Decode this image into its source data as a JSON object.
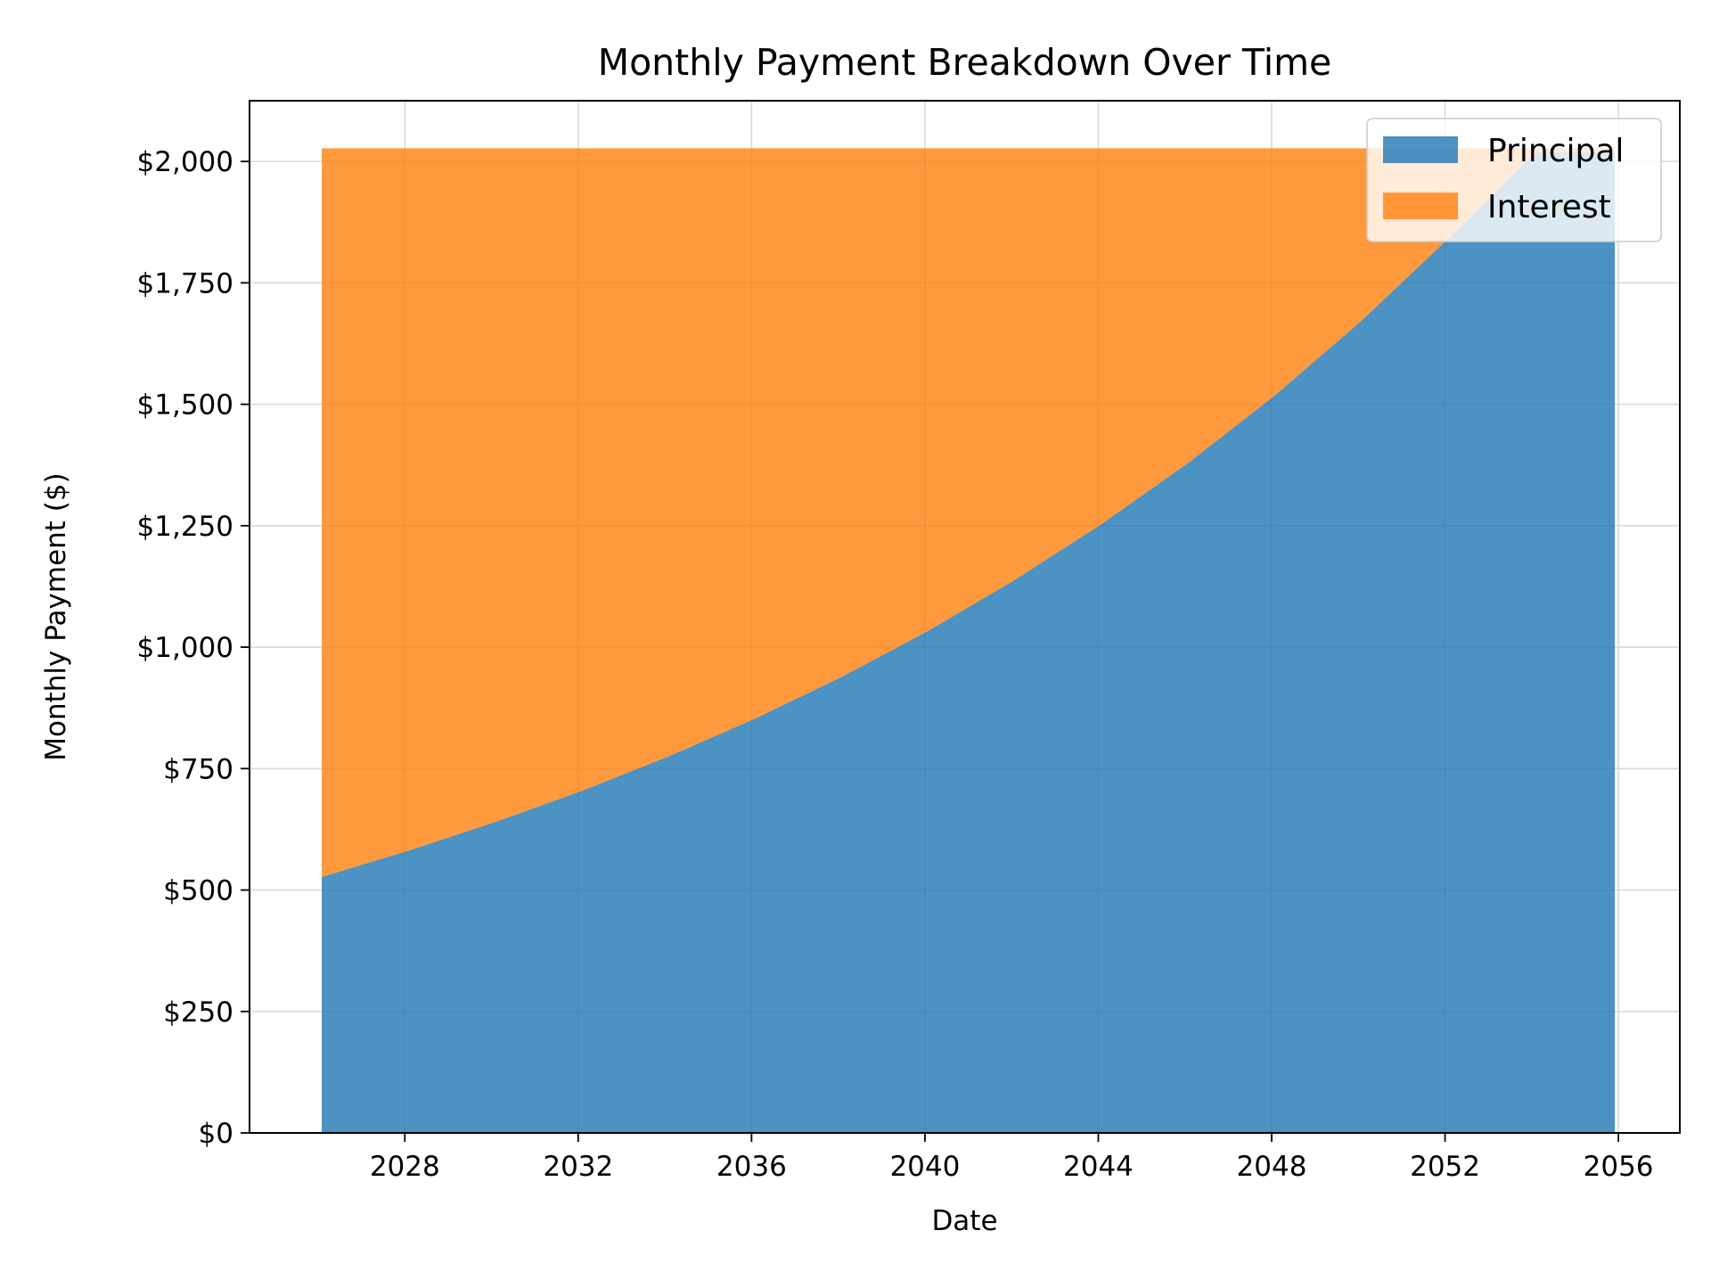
{
  "chart_data": {
    "type": "area",
    "stacked": true,
    "title": "Monthly Payment Breakdown Over Time",
    "xlabel": "Date",
    "ylabel": "Monthly Payment ($)",
    "x_axis_type": "date",
    "xlim": [
      "2024-06-01",
      "2057-06-01"
    ],
    "ylim": [
      0,
      2125
    ],
    "x_ticks": [
      "2028",
      "2032",
      "2036",
      "2040",
      "2044",
      "2048",
      "2052",
      "2056"
    ],
    "y_ticks": [
      0,
      250,
      500,
      750,
      1000,
      1250,
      1500,
      1750,
      2000
    ],
    "y_tick_labels": [
      "$0",
      "$250",
      "$500",
      "$750",
      "$1,000",
      "$1,250",
      "$1,500",
      "$1,750",
      "$2,000"
    ],
    "grid": true,
    "legend_position": "top-right",
    "x": [
      "2026-02-01",
      "2028-02-01",
      "2030-02-01",
      "2032-02-01",
      "2034-02-01",
      "2036-02-01",
      "2038-02-01",
      "2040-02-01",
      "2042-02-01",
      "2044-02-01",
      "2046-02-01",
      "2048-02-01",
      "2050-02-01",
      "2052-02-01",
      "2054-02-01",
      "2055-12-01"
    ],
    "series": [
      {
        "name": "Principal",
        "color": "#1f77b4",
        "values": [
          527,
          581,
          640,
          704,
          775,
          853,
          939,
          1034,
          1139,
          1254,
          1380,
          1519,
          1673,
          1842,
          2018,
          2020
        ]
      },
      {
        "name": "Interest",
        "color": "#ff7f0e",
        "values": [
          1500,
          1446,
          1387,
          1323,
          1252,
          1174,
          1088,
          993,
          888,
          773,
          647,
          508,
          354,
          185,
          9,
          7
        ]
      }
    ]
  }
}
